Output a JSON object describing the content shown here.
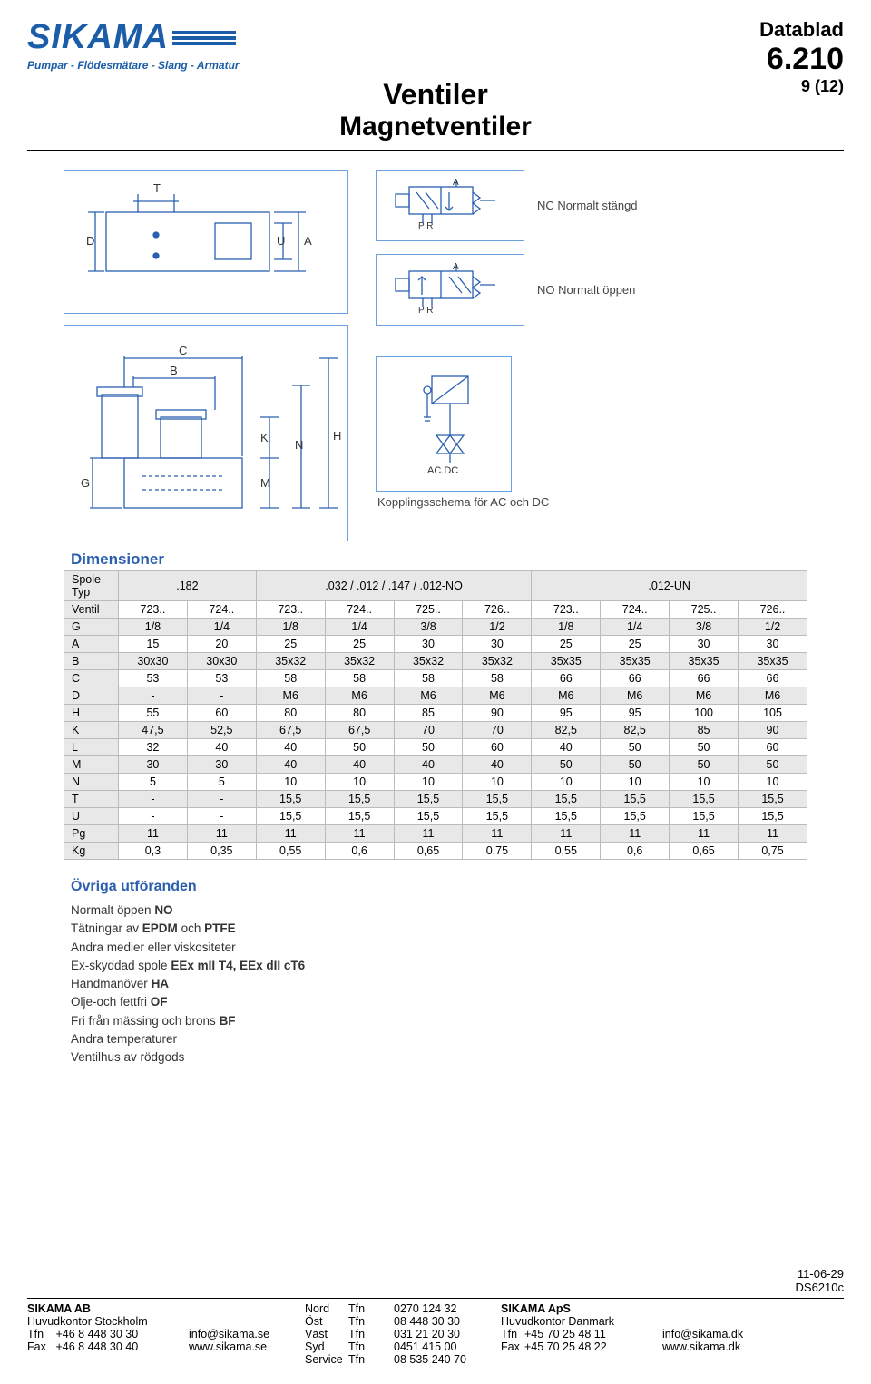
{
  "logo": {
    "name": "SIKAMA",
    "subtitle": "Pumpar - Flödesmätare - Slang - Armatur"
  },
  "datablad": {
    "label": "Datablad",
    "number": "6.210",
    "page": "9 (12)"
  },
  "title": {
    "line1": "Ventiler",
    "line2": "Magnetventiler"
  },
  "diagrams": {
    "top_dims": [
      "T",
      "D",
      "U",
      "A"
    ],
    "bottom_dims": [
      "C",
      "B",
      "G",
      "M",
      "K",
      "N",
      "H"
    ],
    "sym_nc": {
      "ports": "P  R",
      "out": "A",
      "label": "NC Normalt stängd"
    },
    "sym_no": {
      "ports": "P  R",
      "out": "A",
      "label": "NO Normalt öppen"
    },
    "sym_acdc": {
      "label": "AC.DC",
      "caption": "Kopplingsschema för AC och DC"
    },
    "border_color": "#6aa3e0",
    "line_color": "#2a5fb0"
  },
  "dimensions": {
    "title": "Dimensioner",
    "colgroups": [
      {
        "label": ".182",
        "span": 2
      },
      {
        "label": ".032 / .012 / .147 / .012-NO",
        "span": 4
      },
      {
        "label": ".012-UN",
        "span": 4
      }
    ],
    "header_rows": [
      [
        "Spole",
        "",
        "",
        "",
        "",
        "",
        "",
        "",
        "",
        "",
        ""
      ],
      [
        "Typ",
        ".182",
        "",
        ".032 / .012 / .147 / .012-NO",
        "",
        "",
        "",
        ".012-UN",
        "",
        "",
        ""
      ]
    ],
    "ventil_row": [
      "Ventil",
      "723..",
      "724..",
      "723..",
      "724..",
      "725..",
      "726..",
      "723..",
      "724..",
      "725..",
      "726.."
    ],
    "rows": [
      [
        "G",
        "1/8",
        "1/4",
        "1/8",
        "1/4",
        "3/8",
        "1/2",
        "1/8",
        "1/4",
        "3/8",
        "1/2"
      ],
      [
        "A",
        "15",
        "20",
        "25",
        "25",
        "30",
        "30",
        "25",
        "25",
        "30",
        "30"
      ],
      [
        "B",
        "30x30",
        "30x30",
        "35x32",
        "35x32",
        "35x32",
        "35x32",
        "35x35",
        "35x35",
        "35x35",
        "35x35"
      ],
      [
        "C",
        "53",
        "53",
        "58",
        "58",
        "58",
        "58",
        "66",
        "66",
        "66",
        "66"
      ],
      [
        "D",
        "-",
        "-",
        "M6",
        "M6",
        "M6",
        "M6",
        "M6",
        "M6",
        "M6",
        "M6"
      ],
      [
        "H",
        "55",
        "60",
        "80",
        "80",
        "85",
        "90",
        "95",
        "95",
        "100",
        "105"
      ],
      [
        "K",
        "47,5",
        "52,5",
        "67,5",
        "67,5",
        "70",
        "70",
        "82,5",
        "82,5",
        "85",
        "90"
      ],
      [
        "L",
        "32",
        "40",
        "40",
        "50",
        "50",
        "60",
        "40",
        "50",
        "50",
        "60"
      ],
      [
        "M",
        "30",
        "30",
        "40",
        "40",
        "40",
        "40",
        "50",
        "50",
        "50",
        "50"
      ],
      [
        "N",
        "5",
        "5",
        "10",
        "10",
        "10",
        "10",
        "10",
        "10",
        "10",
        "10"
      ],
      [
        "T",
        "-",
        "-",
        "15,5",
        "15,5",
        "15,5",
        "15,5",
        "15,5",
        "15,5",
        "15,5",
        "15,5"
      ],
      [
        "U",
        "-",
        "-",
        "15,5",
        "15,5",
        "15,5",
        "15,5",
        "15,5",
        "15,5",
        "15,5",
        "15,5"
      ],
      [
        "Pg",
        "11",
        "11",
        "11",
        "11",
        "11",
        "11",
        "11",
        "11",
        "11",
        "11"
      ],
      [
        "Kg",
        "0,3",
        "0,35",
        "0,55",
        "0,6",
        "0,65",
        "0,75",
        "0,55",
        "0,6",
        "0,65",
        "0,75"
      ]
    ],
    "grey_rows": [
      "G",
      "B",
      "D",
      "K",
      "M",
      "T",
      "Pg"
    ]
  },
  "ovriga": {
    "title": "Övriga utföranden",
    "lines": [
      "Normalt öppen <b>NO</b>",
      "Tätningar av <b>EPDM</b> och <b>PTFE</b>",
      "Andra medier eller viskositeter",
      "Ex-skyddad spole <b>EEx mII T4, EEx dII cT6</b>",
      "Handmanöver <b>HA</b>",
      "Olje-och fettfri <b>OF</b>",
      "Fri från mässing och brons <b>BF</b>",
      "Andra temperaturer",
      "Ventilhus av rödgods"
    ]
  },
  "footer": {
    "date": "11-06-29",
    "code": "DS6210c",
    "col1": {
      "l1": "SIKAMA AB",
      "l2": "Huvudkontor Stockholm",
      "l3a": "Tfn",
      "l3b": "+46 8 448 30 30",
      "l4a": "Fax",
      "l4b": "+46 8 448 30 40"
    },
    "col2": {
      "l3": "info@sikama.se",
      "l4": "www.sikama.se"
    },
    "col3": {
      "l1a": "Nord",
      "l1b": "Tfn",
      "l2a": "Öst",
      "l2b": "Tfn",
      "l3a": "Väst",
      "l3b": "Tfn",
      "l4a": "Syd",
      "l4b": "Tfn",
      "l5a": "Service",
      "l5b": "Tfn"
    },
    "col4": {
      "l1": "0270 124 32",
      "l2": "08 448 30 30",
      "l3": "031 21 20 30",
      "l4": "0451 415 00",
      "l5": "08 535 240 70"
    },
    "col5": {
      "l1": "SIKAMA ApS",
      "l2": "Huvudkontor Danmark",
      "l3a": "Tfn",
      "l3b": "+45 70 25 48 11",
      "l4a": "Fax",
      "l4b": "+45 70 25 48 22"
    },
    "col6": {
      "l3": "info@sikama.dk",
      "l4": "www.sikama.dk"
    }
  }
}
